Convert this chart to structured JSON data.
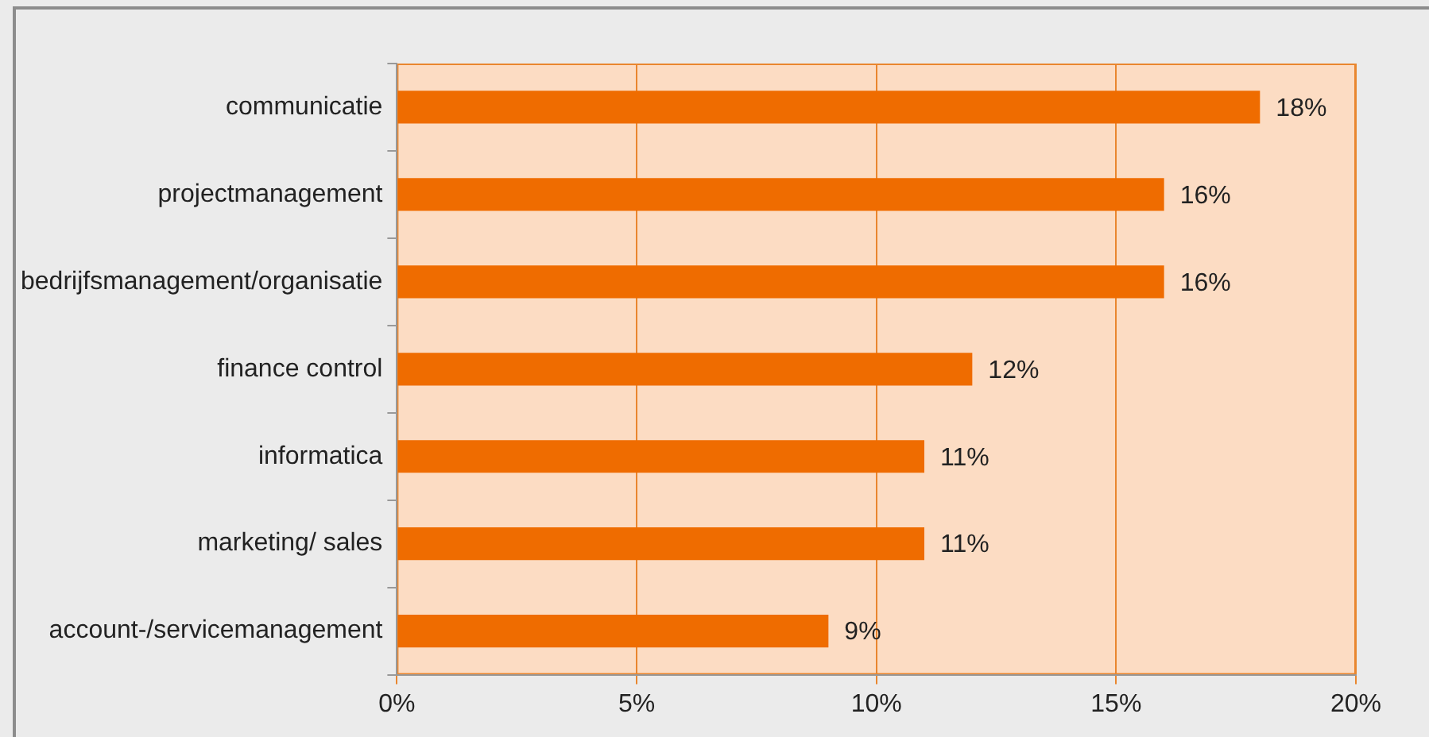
{
  "chart_data": {
    "type": "bar",
    "orientation": "horizontal",
    "categories": [
      "communicatie",
      "projectmanagement",
      "bedrijfsmanagement/organisatie",
      "finance control",
      "informatica",
      "marketing/ sales",
      "account-/servicemanagement"
    ],
    "values": [
      18,
      16,
      16,
      12,
      11,
      11,
      9
    ],
    "color": "#ef6c00",
    "xlim": [
      0,
      20
    ],
    "xticks": [
      {
        "value": 0,
        "label": "0%"
      },
      {
        "value": 5,
        "label": "5%"
      },
      {
        "value": 10,
        "label": "10%"
      },
      {
        "value": 15,
        "label": "15%"
      },
      {
        "value": 20,
        "label": "20%"
      }
    ],
    "value_labels": [
      "18%",
      "16%",
      "16%",
      "12%",
      "11%",
      "11%",
      "9%"
    ],
    "grid": "x",
    "legend": false
  }
}
